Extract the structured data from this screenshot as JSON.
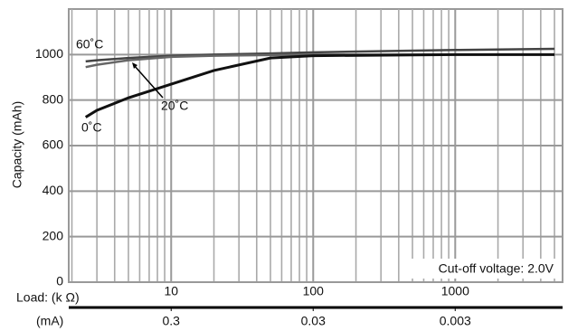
{
  "chart_data": {
    "type": "line",
    "y_label": "Capacity (mAh)",
    "x_label": "Load: (k Ω)",
    "x2_label": "(mA)",
    "annotation": "Cut-off voltage: 2.0V",
    "log_x": true,
    "x": [
      2.5,
      3,
      5,
      10,
      20,
      50,
      100,
      1000,
      5000
    ],
    "series": [
      {
        "name": "60˚C",
        "color": "#444444",
        "values": [
          970,
          975,
          985,
          995,
          1000,
          1005,
          1010,
          1020,
          1025
        ]
      },
      {
        "name": "20˚C",
        "color": "#666666",
        "values": [
          945,
          955,
          975,
          990,
          995,
          998,
          1000,
          1000,
          1000
        ]
      },
      {
        "name": "0˚C",
        "color": "#111111",
        "values": [
          725,
          755,
          810,
          870,
          930,
          985,
          995,
          1000,
          1000
        ]
      }
    ],
    "xlim": [
      1.9,
      5700
    ],
    "xticks": [
      10,
      100,
      1000
    ],
    "x2lim": [
      1.579,
      0.000526
    ],
    "x2ticks": [
      0.3,
      0.03,
      0.003
    ],
    "ylim": [
      0,
      1200
    ],
    "yticks": [
      0,
      200,
      400,
      600,
      800,
      1000
    ],
    "grid": true
  }
}
